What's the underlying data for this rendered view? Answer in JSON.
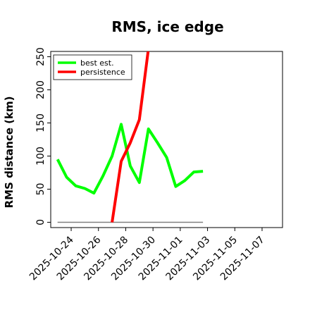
{
  "chart_data": {
    "type": "line",
    "title": "RMS, ice edge",
    "xlabel": "",
    "ylabel": "RMS distance (km)",
    "ylim": [
      -8,
      258
    ],
    "xlim": [
      "2025-10-22T12:00",
      "2025-11-08T12:00"
    ],
    "yticks": [
      0,
      50,
      100,
      150,
      200,
      250
    ],
    "xticks": [
      {
        "date": "2025-10-24",
        "label": "2025-10-24"
      },
      {
        "date": "2025-10-26",
        "label": "2025-10-26"
      },
      {
        "date": "2025-10-28",
        "label": "2025-10-28"
      },
      {
        "date": "2025-10-30",
        "label": "2025-10-30"
      },
      {
        "date": "2025-11-01",
        "label": "2025-11-01"
      },
      {
        "date": "2025-11-03",
        "label": "2025-11-03"
      },
      {
        "date": "2025-11-05",
        "label": "2025-11-05"
      },
      {
        "date": "2025-11-07",
        "label": "2025-11-07"
      }
    ],
    "legend_position": "top-left",
    "grid": false,
    "series": [
      {
        "name": "best est.",
        "color": "#00ff00",
        "points": [
          {
            "x": "2025-10-23",
            "y": 95
          },
          {
            "x": "2025-10-23T16:00",
            "y": 68
          },
          {
            "x": "2025-10-24T08:00",
            "y": 55
          },
          {
            "x": "2025-10-25",
            "y": 51
          },
          {
            "x": "2025-10-25T16:00",
            "y": 44
          },
          {
            "x": "2025-10-26T08:00",
            "y": 70
          },
          {
            "x": "2025-10-27",
            "y": 100
          },
          {
            "x": "2025-10-27T16:00",
            "y": 148
          },
          {
            "x": "2025-10-28T08:00",
            "y": 85
          },
          {
            "x": "2025-10-29",
            "y": 60
          },
          {
            "x": "2025-10-29T16:00",
            "y": 141
          },
          {
            "x": "2025-10-30T08:00",
            "y": 120
          },
          {
            "x": "2025-10-31",
            "y": 98
          },
          {
            "x": "2025-10-31T16:00",
            "y": 54
          },
          {
            "x": "2025-11-01T08:00",
            "y": 63
          },
          {
            "x": "2025-11-02",
            "y": 76
          },
          {
            "x": "2025-11-02T16:00",
            "y": 77
          }
        ]
      },
      {
        "name": "persistence",
        "color": "#ff0000",
        "points": [
          {
            "x": "2025-10-27",
            "y": 0
          },
          {
            "x": "2025-10-27T16:00",
            "y": 92
          },
          {
            "x": "2025-10-28T08:00",
            "y": 120
          },
          {
            "x": "2025-10-29",
            "y": 155
          },
          {
            "x": "2025-10-29T16:00",
            "y": 262
          }
        ]
      }
    ],
    "reference_line": {
      "y": 0,
      "from": "2025-10-23",
      "to": "2025-11-02T16:00",
      "color": "#808080"
    }
  }
}
